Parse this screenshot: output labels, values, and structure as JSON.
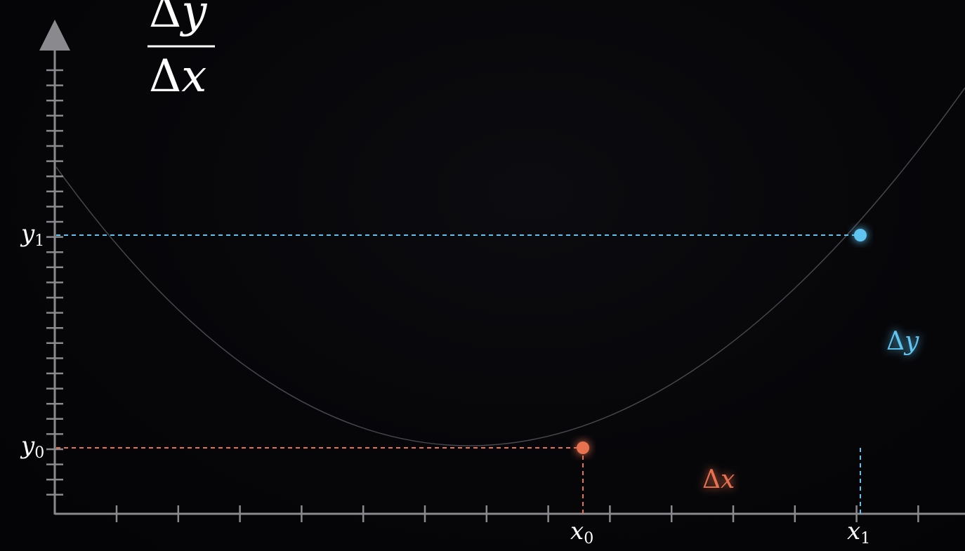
{
  "formula": {
    "numerator_symbol": "Δ",
    "numerator_var": "y",
    "denominator_symbol": "Δ",
    "denominator_var": "x"
  },
  "axis_labels": {
    "y1": {
      "base": "y",
      "sub": "1"
    },
    "y0": {
      "base": "y",
      "sub": "0"
    },
    "x0": {
      "base": "x",
      "sub": "0"
    },
    "x1": {
      "base": "x",
      "sub": "1"
    }
  },
  "segment_labels": {
    "delta_y": {
      "symbol": "Δ",
      "var": "y"
    },
    "delta_x": {
      "symbol": "Δ",
      "var": "x"
    }
  },
  "colors": {
    "background": "#050508",
    "axis": "#8a8a8e",
    "curve": "#4a4a50",
    "delta_x": "#e8714f",
    "delta_y": "#5ec4ef",
    "text": "#ffffff"
  }
}
